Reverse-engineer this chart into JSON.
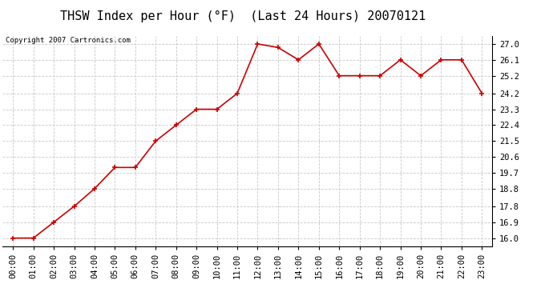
{
  "title": "THSW Index per Hour (°F)  (Last 24 Hours) 20070121",
  "copyright": "Copyright 2007 Cartronics.com",
  "hours": [
    "00:00",
    "01:00",
    "02:00",
    "03:00",
    "04:00",
    "05:00",
    "06:00",
    "07:00",
    "08:00",
    "09:00",
    "10:00",
    "11:00",
    "12:00",
    "13:00",
    "14:00",
    "15:00",
    "16:00",
    "17:00",
    "18:00",
    "19:00",
    "20:00",
    "21:00",
    "22:00",
    "23:00"
  ],
  "values": [
    16.0,
    16.0,
    16.9,
    17.8,
    18.8,
    20.0,
    20.0,
    21.5,
    22.4,
    23.3,
    23.3,
    24.2,
    27.0,
    26.8,
    26.1,
    27.0,
    25.2,
    25.2,
    25.2,
    26.1,
    25.2,
    26.1,
    26.1,
    24.2
  ],
  "y_ticks": [
    16.0,
    16.9,
    17.8,
    18.8,
    19.7,
    20.6,
    21.5,
    22.4,
    23.3,
    24.2,
    25.2,
    26.1,
    27.0
  ],
  "y_min": 15.55,
  "y_max": 27.45,
  "line_color": "#cc0000",
  "marker": "+",
  "marker_size": 4,
  "marker_color": "#cc0000",
  "bg_color": "#ffffff",
  "grid_color": "#c8c8c8",
  "title_fontsize": 11,
  "copyright_fontsize": 6.5,
  "tick_fontsize": 7.5
}
